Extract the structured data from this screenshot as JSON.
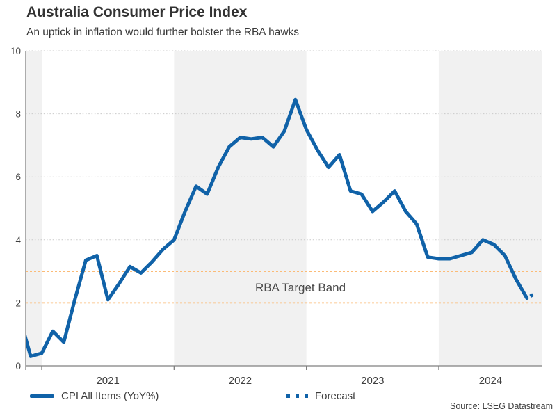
{
  "header": {
    "title": "Australia Consumer Price Index",
    "subtitle": "An uptick in inflation would further bolster the RBA hawks"
  },
  "legend": [
    {
      "label": "CPI All Items (YoY%)",
      "style": "solid"
    },
    {
      "label": "Forecast",
      "style": "dotted"
    }
  ],
  "source": "Source: LSEG Datastream",
  "colors": {
    "line_blue": "#1062A8",
    "target_band_orange": "#FBBB77",
    "shaded_band_gray": "#F1F1F1",
    "gridline_gray": "#C9C9C9",
    "axis_gray": "#7F7F7F",
    "tick_text": "#3F3F3F",
    "annotation_text": "#4A4A4A"
  },
  "chart_data": {
    "type": "line",
    "title": "Australia Consumer Price Index",
    "subtitle": "An uptick in inflation would further bolster the RBA hawks",
    "ylabel": "",
    "xlabel": "",
    "ylim": [
      0,
      10
    ],
    "yticks": [
      0,
      2,
      4,
      6,
      8,
      10
    ],
    "xticks": [
      "2021",
      "2022",
      "2023",
      "2024"
    ],
    "x_domain_months": [
      "2020-11",
      "2024-10"
    ],
    "grid": "horizontal-dotted",
    "legend_position": "bottom",
    "shaded_years": [
      "2020",
      "2022",
      "2024"
    ],
    "target_band": {
      "low": 2,
      "high": 3,
      "label": "RBA Target Band"
    },
    "series": [
      {
        "name": "CPI All Items (YoY%)",
        "style": "solid",
        "points": [
          [
            "2020-11",
            1.55
          ],
          [
            "2020-12",
            0.3
          ],
          [
            "2021-01",
            0.4
          ],
          [
            "2021-02",
            1.1
          ],
          [
            "2021-03",
            0.75
          ],
          [
            "2021-04",
            2.1
          ],
          [
            "2021-05",
            3.35
          ],
          [
            "2021-06",
            3.5
          ],
          [
            "2021-07",
            2.1
          ],
          [
            "2021-08",
            2.6
          ],
          [
            "2021-09",
            3.15
          ],
          [
            "2021-10",
            2.95
          ],
          [
            "2021-11",
            3.3
          ],
          [
            "2021-12",
            3.7
          ],
          [
            "2022-01",
            4.0
          ],
          [
            "2022-02",
            4.9
          ],
          [
            "2022-03",
            5.7
          ],
          [
            "2022-04",
            5.45
          ],
          [
            "2022-05",
            6.3
          ],
          [
            "2022-06",
            6.95
          ],
          [
            "2022-07",
            7.25
          ],
          [
            "2022-08",
            7.2
          ],
          [
            "2022-09",
            7.25
          ],
          [
            "2022-10",
            6.95
          ],
          [
            "2022-11",
            7.45
          ],
          [
            "2022-12",
            8.45
          ],
          [
            "2023-01",
            7.5
          ],
          [
            "2023-02",
            6.85
          ],
          [
            "2023-03",
            6.3
          ],
          [
            "2023-04",
            6.7
          ],
          [
            "2023-05",
            5.55
          ],
          [
            "2023-06",
            5.45
          ],
          [
            "2023-07",
            4.9
          ],
          [
            "2023-08",
            5.2
          ],
          [
            "2023-09",
            5.55
          ],
          [
            "2023-10",
            4.9
          ],
          [
            "2023-11",
            4.5
          ],
          [
            "2023-12",
            3.45
          ],
          [
            "2024-01",
            3.4
          ],
          [
            "2024-02",
            3.4
          ],
          [
            "2024-03",
            3.5
          ],
          [
            "2024-04",
            3.6
          ],
          [
            "2024-05",
            4.0
          ],
          [
            "2024-06",
            3.85
          ],
          [
            "2024-07",
            3.5
          ],
          [
            "2024-08",
            2.75
          ],
          [
            "2024-09",
            2.15
          ]
        ]
      },
      {
        "name": "Forecast",
        "style": "dotted",
        "points": [
          [
            "2024-09",
            2.15
          ],
          [
            "2024-10",
            2.35
          ]
        ]
      }
    ]
  }
}
